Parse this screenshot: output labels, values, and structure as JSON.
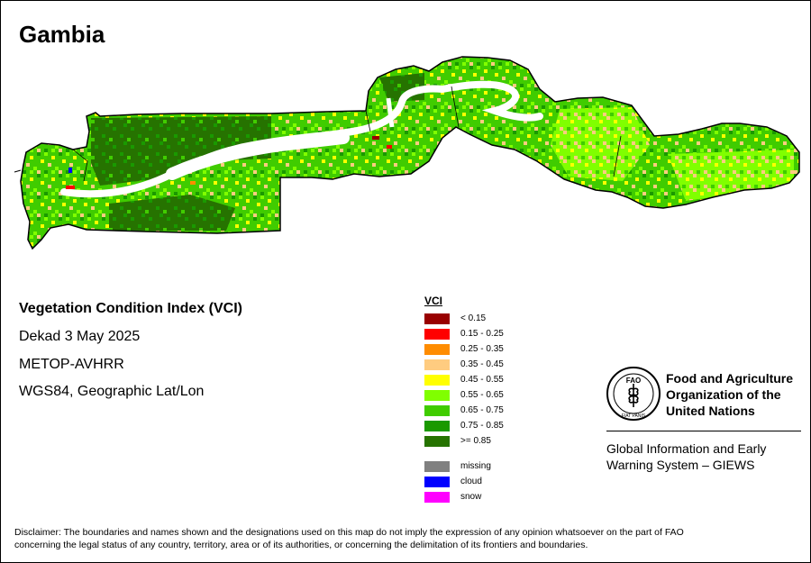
{
  "map": {
    "title": "Gambia",
    "index_name": "Vegetation Condition Index (VCI)",
    "dekad": "Dekad 3 May 2025",
    "sensor": "METOP-AVHRR",
    "projection": "WGS84, Geographic Lat/Lon"
  },
  "legend": {
    "title": "VCI",
    "classes": [
      {
        "label": "< 0.15",
        "color": "#990000"
      },
      {
        "label": "0.15 - 0.25",
        "color": "#ff0000"
      },
      {
        "label": "0.25 - 0.35",
        "color": "#ff8c00"
      },
      {
        "label": "0.35 - 0.45",
        "color": "#ffcc80"
      },
      {
        "label": "0.45 - 0.55",
        "color": "#ffff00"
      },
      {
        "label": "0.55 - 0.65",
        "color": "#80ff00"
      },
      {
        "label": "0.65 - 0.75",
        "color": "#40cc00"
      },
      {
        "label": "0.75 - 0.85",
        "color": "#1a9900"
      },
      {
        "label": ">= 0.85",
        "color": "#267300"
      }
    ],
    "extra": [
      {
        "label": "missing",
        "color": "#808080"
      },
      {
        "label": "cloud",
        "color": "#0000ff"
      },
      {
        "label": "snow",
        "color": "#ff00ff"
      }
    ]
  },
  "organization": {
    "logo_text": "FAO",
    "logo_motto": "FIAT PANIS",
    "name_line1": "Food and Agriculture",
    "name_line2": "Organization of the",
    "name_line3": "United Nations",
    "giews_line1": "Global Information and Early",
    "giews_line2": "Warning System – GIEWS"
  },
  "disclaimer_line1": "Disclaimer: The boundaries and names shown and the designations used on this map do not imply the expression of any opinion whatsoever on the part of FAO",
  "disclaimer_line2": "concerning the legal status of any country, territory, area or of its authorities, or concerning the delimitation of its frontiers and boundaries."
}
